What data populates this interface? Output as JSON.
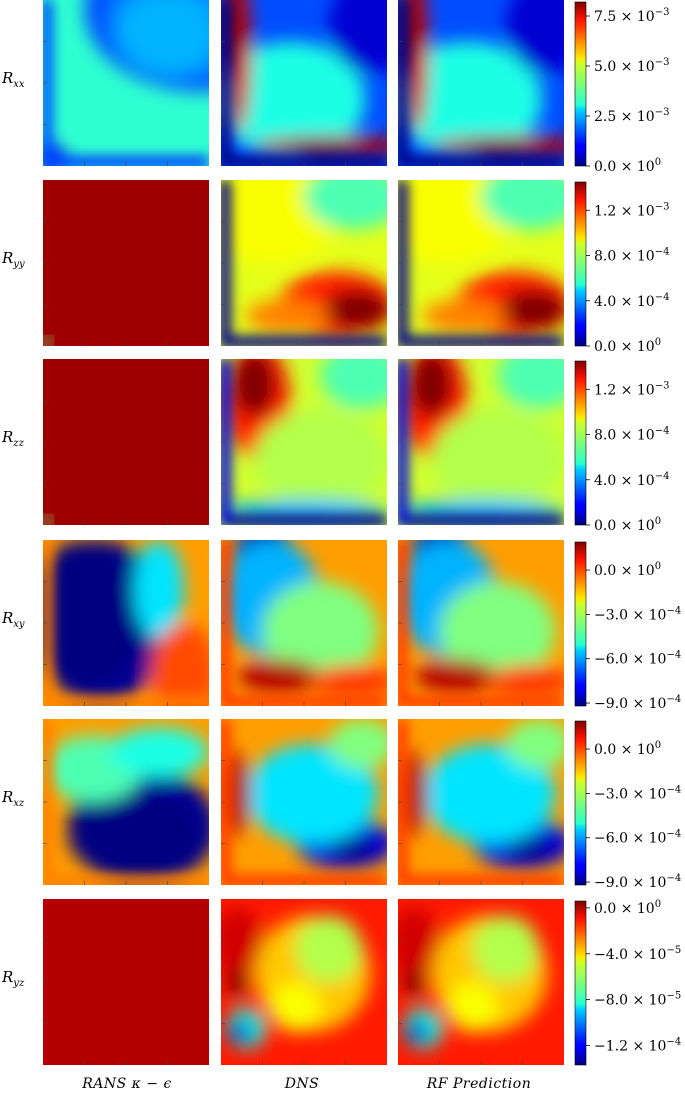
{
  "chart_data": {
    "type": "heatmap",
    "columns": [
      "RANS κ − ϵ",
      "DNS",
      "RF Prediction"
    ],
    "rows": [
      {
        "label": "R",
        "label_sub": "xx",
        "colorbar": {
          "vmin": 0,
          "vmax": 0.0082,
          "ticks": [
            {
              "mant": "0.0",
              "exp": "0",
              "value": 0
            },
            {
              "mant": "2.5",
              "exp": "−3",
              "value": 0.0025
            },
            {
              "mant": "5.0",
              "exp": "−3",
              "value": 0.005
            },
            {
              "mant": "7.5",
              "exp": "−3",
              "value": 0.0075
            }
          ]
        }
      },
      {
        "label": "R",
        "label_sub": "yy",
        "colorbar": {
          "vmin": 0,
          "vmax": 0.00145,
          "ticks": [
            {
              "mant": "0.0",
              "exp": "0",
              "value": 0
            },
            {
              "mant": "4.0",
              "exp": "−4",
              "value": 0.0004
            },
            {
              "mant": "8.0",
              "exp": "−4",
              "value": 0.0008
            },
            {
              "mant": "1.2",
              "exp": "−3",
              "value": 0.0012
            }
          ]
        }
      },
      {
        "label": "R",
        "label_sub": "zz",
        "colorbar": {
          "vmin": 0,
          "vmax": 0.00145,
          "ticks": [
            {
              "mant": "0.0",
              "exp": "0",
              "value": 0
            },
            {
              "mant": "4.0",
              "exp": "−4",
              "value": 0.0004
            },
            {
              "mant": "8.0",
              "exp": "−4",
              "value": 0.0008
            },
            {
              "mant": "1.2",
              "exp": "−3",
              "value": 0.0012
            }
          ]
        }
      },
      {
        "label": "R",
        "label_sub": "xy",
        "colorbar": {
          "vmin": -0.00092,
          "vmax": 0.00019,
          "ticks": [
            {
              "mant": "−9.0",
              "exp": "−4",
              "value": -0.0009
            },
            {
              "mant": "−6.0",
              "exp": "−4",
              "value": -0.0006
            },
            {
              "mant": "−3.0",
              "exp": "−4",
              "value": -0.0003
            },
            {
              "mant": "0.0",
              "exp": "0",
              "value": 0
            }
          ]
        }
      },
      {
        "label": "R",
        "label_sub": "xz",
        "colorbar": {
          "vmin": -0.00092,
          "vmax": 0.00019,
          "ticks": [
            {
              "mant": "−9.0",
              "exp": "−4",
              "value": -0.0009
            },
            {
              "mant": "−6.0",
              "exp": "−4",
              "value": -0.0006
            },
            {
              "mant": "−3.0",
              "exp": "−4",
              "value": -0.0003
            },
            {
              "mant": "0.0",
              "exp": "0",
              "value": 0
            }
          ]
        }
      },
      {
        "label": "R",
        "label_sub": "yz",
        "colorbar": {
          "vmin": -0.000137,
          "vmax": 6e-06,
          "ticks": [
            {
              "mant": "−1.2",
              "exp": "−4",
              "value": -0.00012
            },
            {
              "mant": "−8.0",
              "exp": "−5",
              "value": -8e-05
            },
            {
              "mant": "−4.0",
              "exp": "−5",
              "value": -4e-05
            },
            {
              "mant": "0.0",
              "exp": "0",
              "value": 0
            }
          ]
        }
      }
    ],
    "colormap": "jet"
  }
}
